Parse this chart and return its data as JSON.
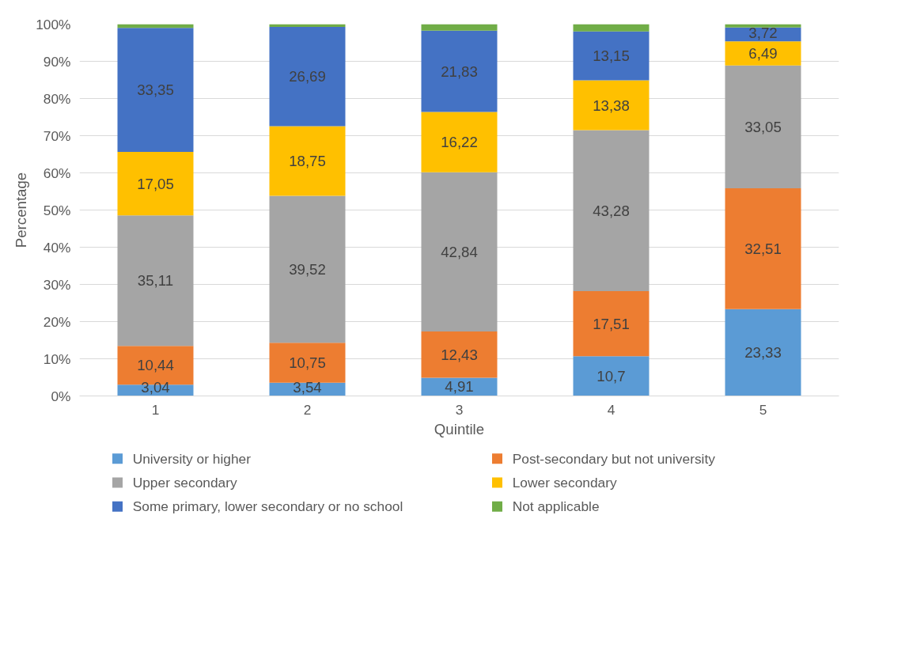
{
  "chart_data": {
    "type": "bar",
    "stacked": true,
    "xlabel": "Quintile",
    "ylabel": "Percentage",
    "categories": [
      "1",
      "2",
      "3",
      "4",
      "5"
    ],
    "ylim": [
      0,
      100
    ],
    "yticks": [
      {
        "value": 0,
        "label": "0%"
      },
      {
        "value": 10,
        "label": "10%"
      },
      {
        "value": 20,
        "label": "20%"
      },
      {
        "value": 30,
        "label": "30%"
      },
      {
        "value": 40,
        "label": "40%"
      },
      {
        "value": 50,
        "label": "50%"
      },
      {
        "value": 60,
        "label": "60%"
      },
      {
        "value": 70,
        "label": "70%"
      },
      {
        "value": 80,
        "label": "80%"
      },
      {
        "value": 90,
        "label": "90%"
      },
      {
        "value": 100,
        "label": "100%"
      }
    ],
    "grid": "y",
    "legend": "bottom",
    "series": [
      {
        "name": "University or higher",
        "color": "#5b9bd5",
        "values": [
          3.04,
          3.54,
          4.91,
          10.7,
          23.33
        ],
        "value_labels": [
          "3,04",
          "3,54",
          "4,91",
          "10,7",
          "23,33"
        ]
      },
      {
        "name": "Post-secondary but not university",
        "color": "#ed7d31",
        "values": [
          10.44,
          10.75,
          12.43,
          17.51,
          32.51
        ],
        "value_labels": [
          "10,44",
          "10,75",
          "12,43",
          "17,51",
          "32,51"
        ]
      },
      {
        "name": "Upper secondary",
        "color": "#a5a5a5",
        "values": [
          35.11,
          39.52,
          42.84,
          43.28,
          33.05
        ],
        "value_labels": [
          "35,11",
          "39,52",
          "42,84",
          "43,28",
          "33,05"
        ]
      },
      {
        "name": "Lower secondary",
        "color": "#ffc000",
        "values": [
          17.05,
          18.75,
          16.22,
          13.38,
          6.49
        ],
        "value_labels": [
          "17,05",
          "18,75",
          "16,22",
          "13,38",
          "6,49"
        ]
      },
      {
        "name": "Some primary, lower secondary or no school",
        "color": "#4472c4",
        "values": [
          33.35,
          26.69,
          21.83,
          13.15,
          3.72
        ],
        "value_labels": [
          "33,35",
          "26,69",
          "21,83",
          "13,15",
          "3,72"
        ]
      },
      {
        "name": "Not applicable",
        "color": "#70ad47",
        "values": [
          1.0,
          0.8,
          1.8,
          2.0,
          0.9
        ]
      }
    ]
  }
}
